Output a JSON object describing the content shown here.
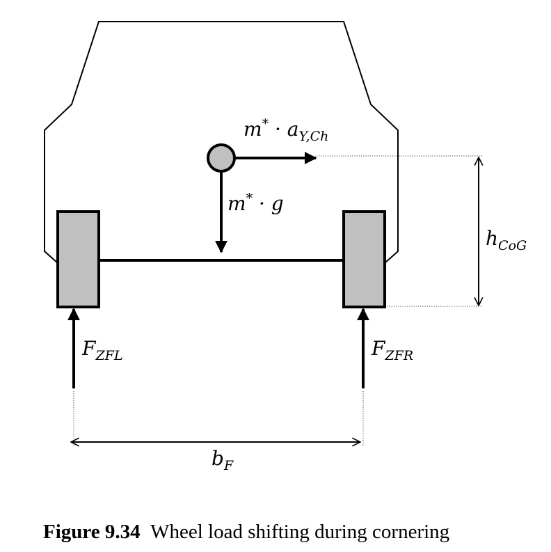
{
  "labels": {
    "inertial_force_base": "m",
    "inertial_force_sup": "*",
    "inertial_force_mid": " · a",
    "inertial_force_sub": "Y,Ch",
    "weight_base": "m",
    "weight_sup": "*",
    "weight_rest": " · g",
    "height_base": "h",
    "height_sub": "CoG",
    "force_left_base": "F",
    "force_left_sub": "ZFL",
    "force_right_base": "F",
    "force_right_sub": "ZFR",
    "track_base": "b",
    "track_sub": "F"
  },
  "caption": {
    "number": "Figure 9.34",
    "text": "Wheel load shifting during cornering"
  },
  "colors": {
    "wheel_fill": "#c0c0c0",
    "cog_fill": "#c0c0c0",
    "line": "#000000"
  }
}
